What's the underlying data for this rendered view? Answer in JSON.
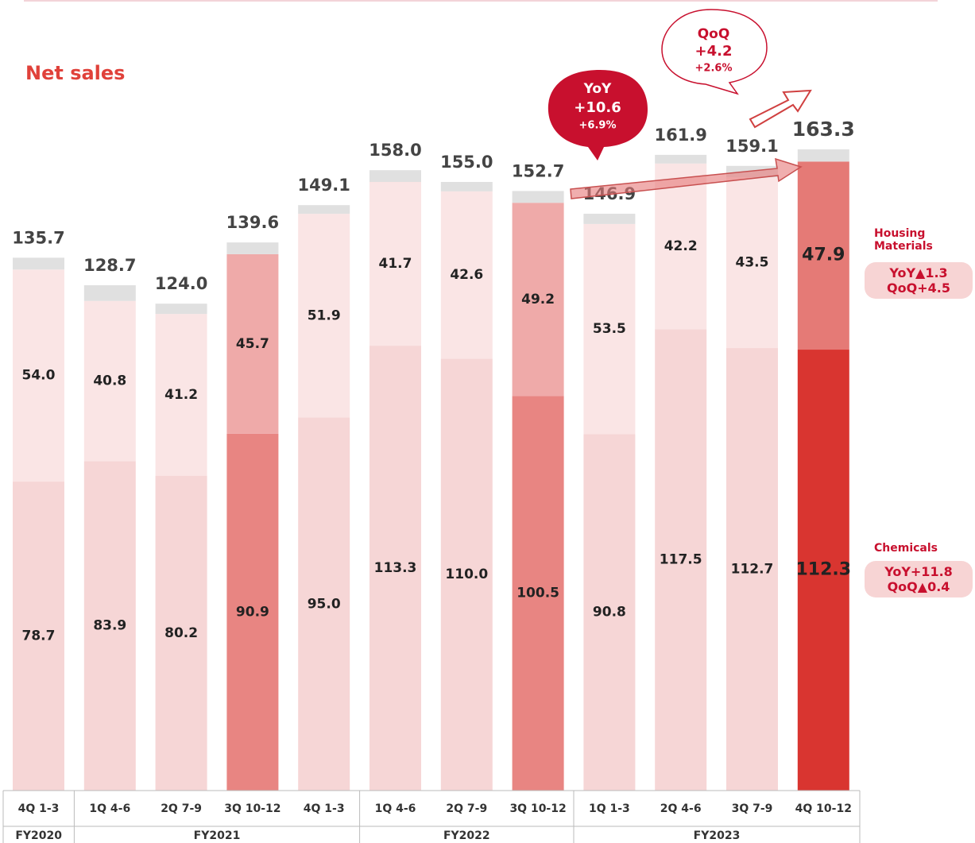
{
  "chart_data": {
    "type": "stacked_bar",
    "title": "Net sales",
    "categories": [
      "4Q 1-3",
      "1Q 4-6",
      "2Q 7-9",
      "3Q 10-12",
      "4Q 1-3",
      "1Q 4-6",
      "2Q 7-9",
      "3Q 10-12",
      "1Q 1-3",
      "2Q 4-6",
      "3Q 7-9",
      "4Q 10-12"
    ],
    "groups": [
      "FY2020",
      "FY2021",
      "FY2022",
      "FY2023"
    ],
    "series": [
      {
        "name": "Chemicals",
        "values": [
          78.7,
          83.9,
          80.2,
          90.9,
          95.0,
          113.3,
          110.0,
          100.5,
          90.8,
          117.5,
          112.7,
          112.3
        ],
        "value_labels": [
          "78.7",
          "83.9",
          "80.2",
          "90.9",
          "95.0",
          "113.3",
          "110.0",
          "100.5",
          "90.8",
          "117.5",
          "112.7",
          "112.3"
        ],
        "colors": [
          "#f6d6d6",
          "#f6d6d6",
          "#f6d6d6",
          "#e88582",
          "#f6d6d6",
          "#f6d6d6",
          "#f6d6d6",
          "#e88582",
          "#f6d6d6",
          "#f6d6d6",
          "#f6d6d6",
          "#d93530"
        ],
        "note": [
          "YoY+11.8",
          "QoQ▲0.4"
        ]
      },
      {
        "name": "Housing Materials",
        "values": [
          54.0,
          40.8,
          41.2,
          45.7,
          51.9,
          41.7,
          42.6,
          49.2,
          53.5,
          42.2,
          43.5,
          47.9
        ],
        "value_labels": [
          "54.0",
          "40.8",
          "41.2",
          "45.7",
          "51.9",
          "41.7",
          "42.6",
          "49.2",
          "53.5",
          "42.2",
          "43.5",
          "47.9"
        ],
        "colors": [
          "#fae5e5",
          "#fae5e5",
          "#fae5e5",
          "#efaaa9",
          "#fae5e5",
          "#fae5e5",
          "#fae5e5",
          "#efaaa9",
          "#fae5e5",
          "#fae5e5",
          "#fae5e5",
          "#e57a76"
        ],
        "note": [
          "YoY▲1.3",
          "QoQ+4.5"
        ]
      },
      {
        "values": [
          3.0,
          4.0,
          2.6,
          3.0,
          2.2,
          3.0,
          2.4,
          3.0,
          2.6,
          2.2,
          2.9,
          3.1
        ],
        "colors": [
          "#e0e0e0",
          "#e0e0e0",
          "#e0e0e0",
          "#e0e0e0",
          "#e0e0e0",
          "#e0e0e0",
          "#e0e0e0",
          "#e0e0e0",
          "#e0e0e0",
          "#e0e0e0",
          "#e0e0e0",
          "#e0e0e0"
        ]
      }
    ],
    "totals": [
      135.7,
      128.7,
      124.0,
      139.6,
      149.1,
      158.0,
      155.0,
      152.7,
      146.9,
      161.9,
      159.1,
      163.3
    ],
    "total_labels": [
      "135.7",
      "128.7",
      "124.0",
      "139.6",
      "149.1",
      "158.0",
      "155.0",
      "152.7",
      "146.9",
      "161.9",
      "159.1",
      "163.3"
    ],
    "yoy": [
      "YoY",
      "+10.6",
      "+6.9%"
    ],
    "qoq": [
      "QoQ",
      "+4.2",
      "+2.6%"
    ]
  }
}
